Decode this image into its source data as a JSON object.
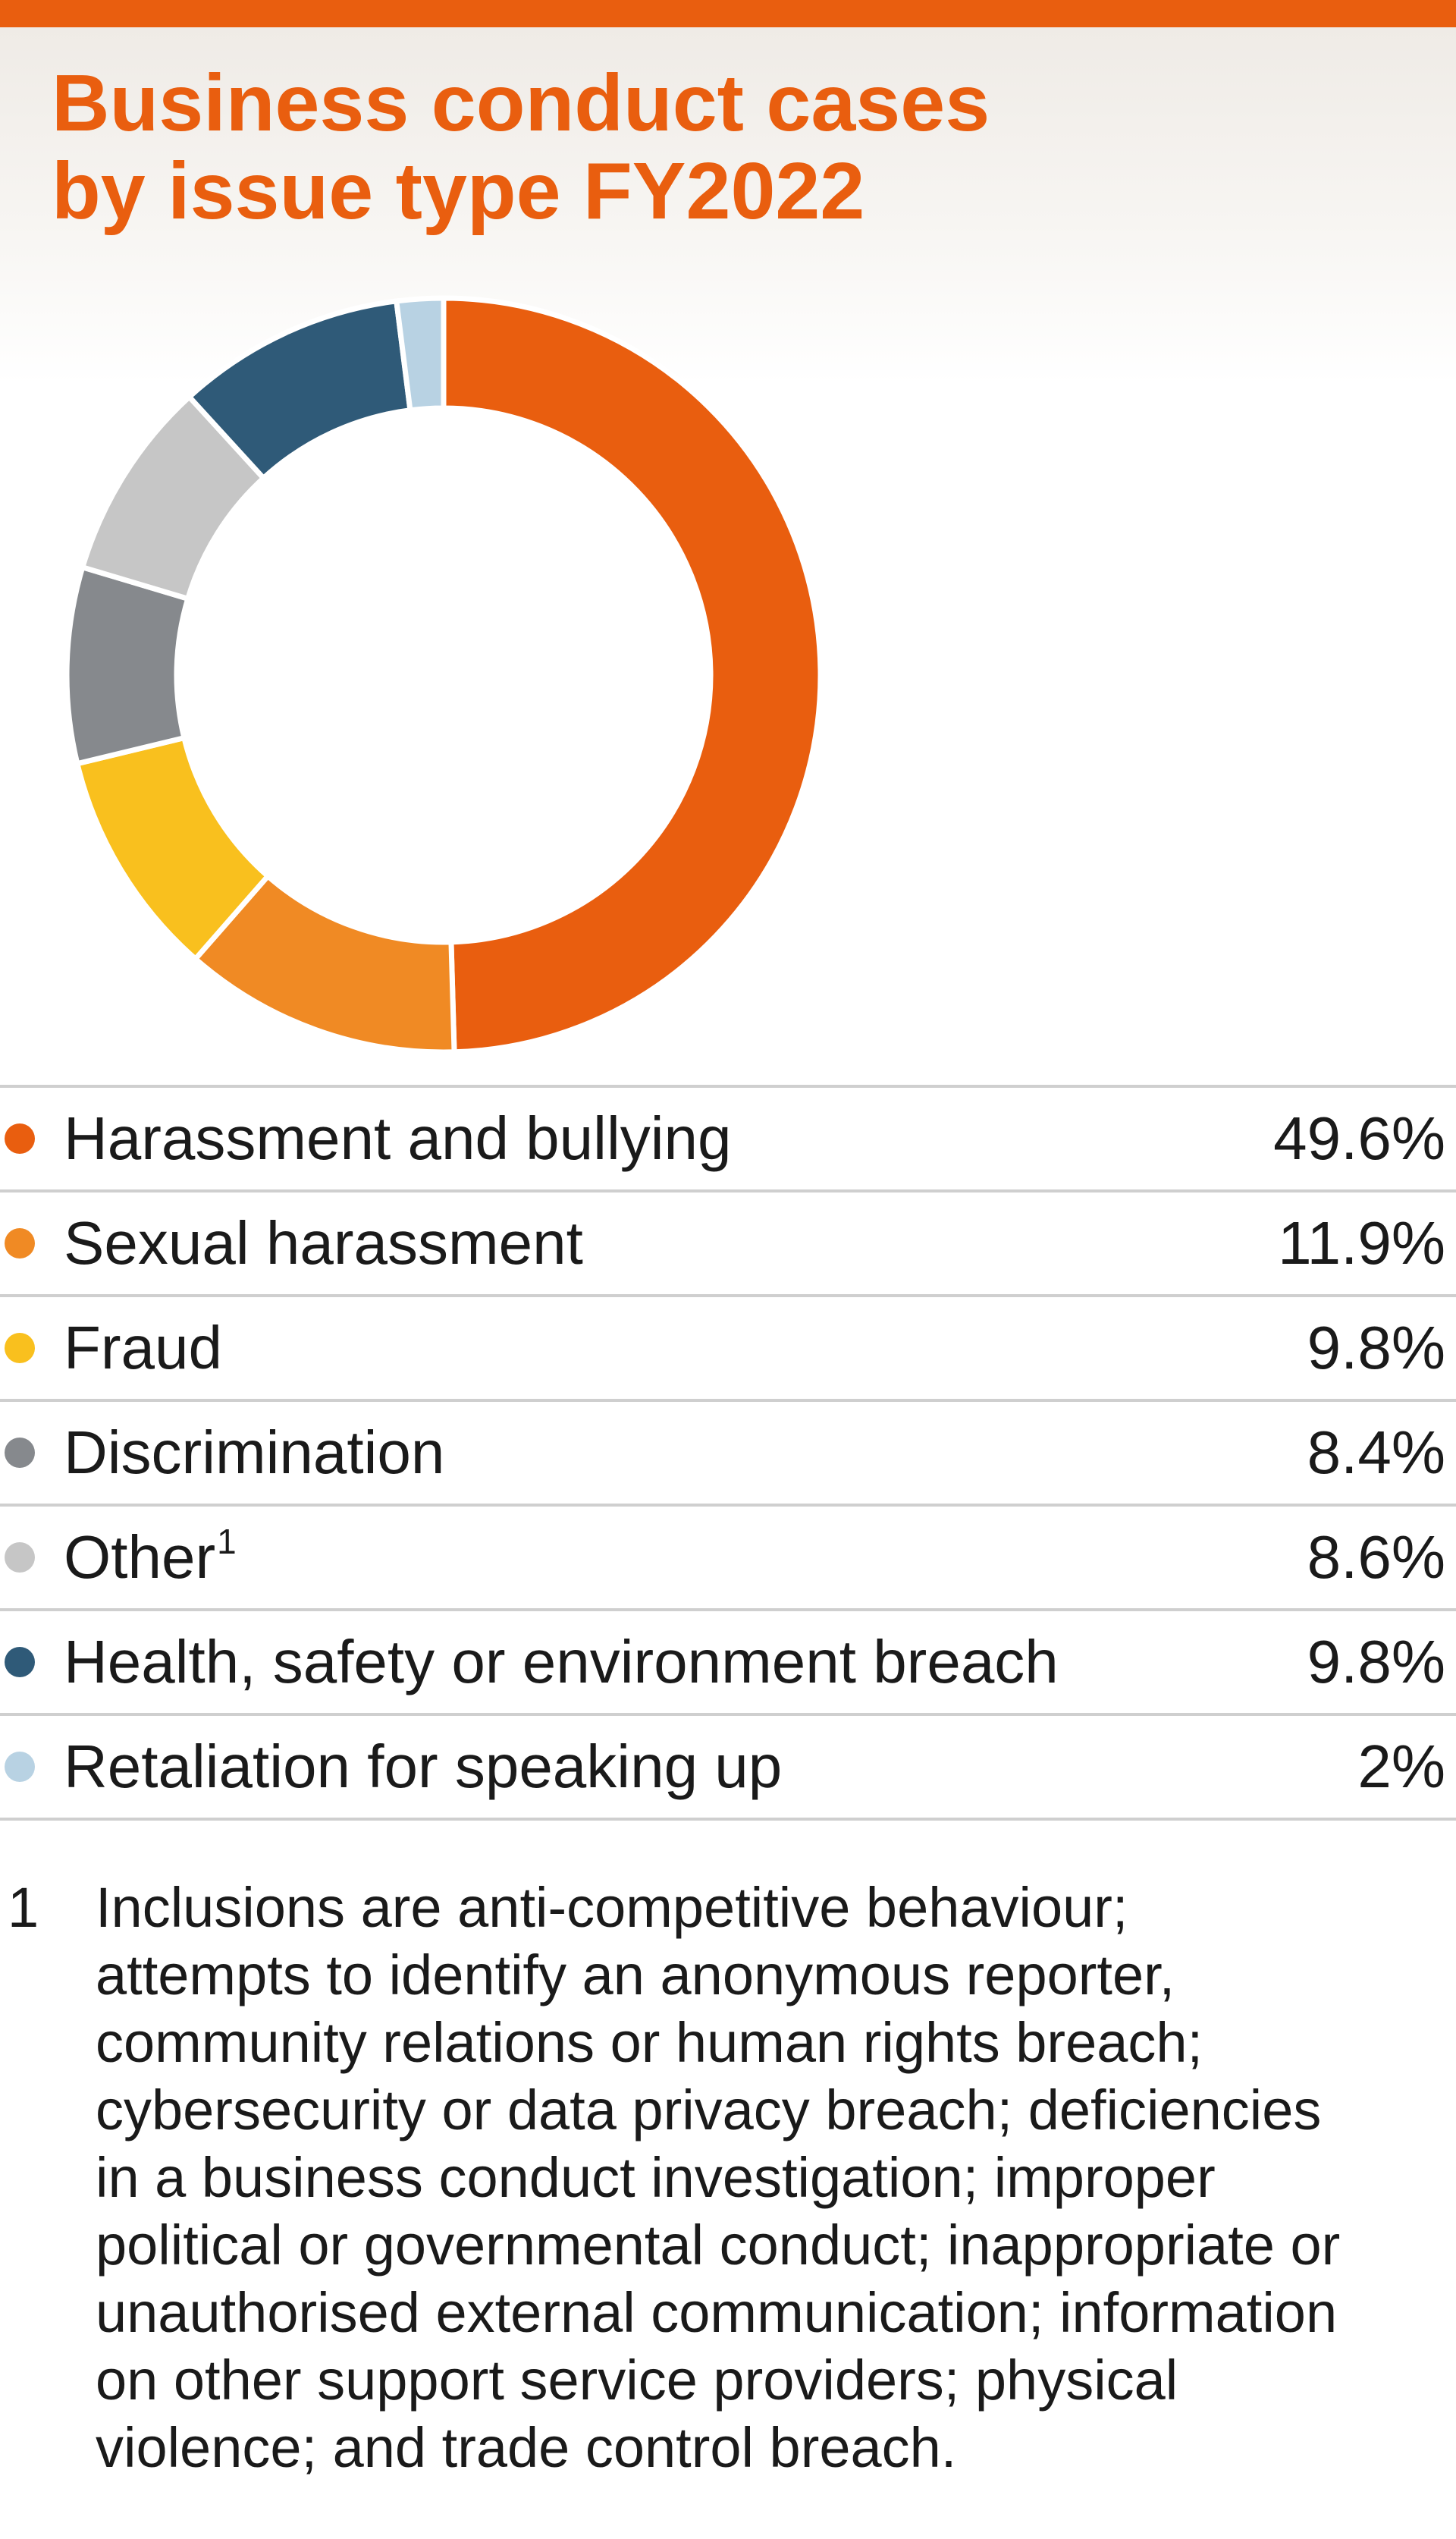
{
  "chart_data": {
    "type": "pie",
    "title_lines": [
      "Business conduct cases",
      "by issue type FY2022"
    ],
    "donut": true,
    "legend_position": "bottom",
    "categories": [
      "Harassment and bullying",
      "Sexual harassment",
      "Fraud",
      "Discrimination",
      "Other",
      "Health, safety or environment breach",
      "Retaliation for speaking up"
    ],
    "values": [
      49.6,
      11.9,
      9.8,
      8.4,
      8.6,
      9.8,
      2
    ],
    "value_labels": [
      "49.6%",
      "11.9%",
      "9.8%",
      "8.4%",
      "8.6%",
      "9.8%",
      "2%"
    ],
    "colors": [
      "#e95e0f",
      "#f08a24",
      "#f9c01e",
      "#86898d",
      "#c6c6c6",
      "#2f5a78",
      "#b8d2e3"
    ],
    "superscripts": [
      "",
      "",
      "",
      "",
      "1",
      "",
      ""
    ]
  },
  "footnote": {
    "marker": "1",
    "lines": [
      "Inclusions are anti-competitive behaviour;",
      "attempts to identify an anonymous reporter,",
      "community relations or human rights breach;",
      "cybersecurity or data privacy breach; deficiencies",
      "in a business conduct investigation; improper",
      "political or governmental conduct; inappropriate or",
      "unauthorised external communication; information",
      "on other support service providers; physical",
      "violence; and trade control breach."
    ]
  }
}
